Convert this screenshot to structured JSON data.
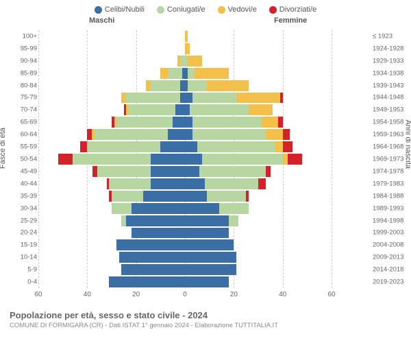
{
  "legend": [
    {
      "label": "Celibi/Nubili",
      "color": "#3b6ea5"
    },
    {
      "label": "Coniugati/e",
      "color": "#b7d6a2"
    },
    {
      "label": "Vedovi/e",
      "color": "#f3c04b"
    },
    {
      "label": "Divorziati/e",
      "color": "#d4222a"
    }
  ],
  "header_m": "Maschi",
  "header_f": "Femmine",
  "axis_left": "Fasce di età",
  "axis_right": "Anni di nascita",
  "title": "Popolazione per età, sesso e stato civile - 2024",
  "subtitle": "COMUNE DI FORMIGARA (CR) - Dati ISTAT 1° gennaio 2024 - Elaborazione TUTTITALIA.IT",
  "xmax": 60,
  "xticks": [
    60,
    40,
    20,
    0,
    20,
    40,
    60
  ],
  "colors": {
    "celibi": "#3b6ea5",
    "coniugati": "#b7d6a2",
    "vedovi": "#f3c04b",
    "divorziati": "#d4222a",
    "grid": "#cccccc",
    "center": "#bbbbbb",
    "bg": "#ffffff"
  },
  "rows": [
    {
      "age": "100+",
      "birth": "≤ 1923",
      "m": [
        0,
        0,
        0,
        0
      ],
      "f": [
        0,
        0,
        1,
        0
      ]
    },
    {
      "age": "95-99",
      "birth": "1924-1928",
      "m": [
        0,
        0,
        0,
        0
      ],
      "f": [
        0,
        0,
        2,
        0
      ]
    },
    {
      "age": "90-94",
      "birth": "1929-1933",
      "m": [
        0,
        2,
        1,
        0
      ],
      "f": [
        0,
        1,
        6,
        0
      ]
    },
    {
      "age": "85-89",
      "birth": "1934-1938",
      "m": [
        1,
        6,
        3,
        0
      ],
      "f": [
        1,
        3,
        14,
        0
      ]
    },
    {
      "age": "80-84",
      "birth": "1939-1943",
      "m": [
        2,
        12,
        2,
        0
      ],
      "f": [
        1,
        8,
        17,
        0
      ]
    },
    {
      "age": "75-79",
      "birth": "1944-1948",
      "m": [
        2,
        22,
        2,
        0
      ],
      "f": [
        3,
        18,
        18,
        1
      ]
    },
    {
      "age": "70-74",
      "birth": "1949-1953",
      "m": [
        4,
        19,
        1,
        1
      ],
      "f": [
        2,
        24,
        10,
        0
      ]
    },
    {
      "age": "65-69",
      "birth": "1954-1958",
      "m": [
        5,
        23,
        1,
        1
      ],
      "f": [
        3,
        28,
        7,
        2
      ]
    },
    {
      "age": "60-64",
      "birth": "1959-1963",
      "m": [
        7,
        30,
        1,
        2
      ],
      "f": [
        3,
        30,
        7,
        3
      ]
    },
    {
      "age": "55-59",
      "birth": "1964-1968",
      "m": [
        10,
        30,
        0,
        3
      ],
      "f": [
        5,
        32,
        3,
        4
      ]
    },
    {
      "age": "50-54",
      "birth": "1969-1973",
      "m": [
        14,
        32,
        0,
        6
      ],
      "f": [
        7,
        33,
        2,
        6
      ]
    },
    {
      "age": "45-49",
      "birth": "1974-1978",
      "m": [
        14,
        22,
        0,
        2
      ],
      "f": [
        6,
        27,
        0,
        2
      ]
    },
    {
      "age": "40-44",
      "birth": "1979-1983",
      "m": [
        14,
        17,
        0,
        1
      ],
      "f": [
        8,
        22,
        0,
        3
      ]
    },
    {
      "age": "35-39",
      "birth": "1984-1988",
      "m": [
        17,
        13,
        0,
        1
      ],
      "f": [
        9,
        16,
        0,
        1
      ]
    },
    {
      "age": "30-34",
      "birth": "1989-1993",
      "m": [
        22,
        8,
        0,
        0
      ],
      "f": [
        14,
        12,
        0,
        0
      ]
    },
    {
      "age": "25-29",
      "birth": "1994-1998",
      "m": [
        24,
        2,
        0,
        0
      ],
      "f": [
        18,
        4,
        0,
        0
      ]
    },
    {
      "age": "20-24",
      "birth": "1999-2003",
      "m": [
        22,
        0,
        0,
        0
      ],
      "f": [
        18,
        0,
        0,
        0
      ]
    },
    {
      "age": "15-19",
      "birth": "2004-2008",
      "m": [
        28,
        0,
        0,
        0
      ],
      "f": [
        20,
        0,
        0,
        0
      ]
    },
    {
      "age": "10-14",
      "birth": "2009-2013",
      "m": [
        27,
        0,
        0,
        0
      ],
      "f": [
        21,
        0,
        0,
        0
      ]
    },
    {
      "age": "5-9",
      "birth": "2014-2018",
      "m": [
        26,
        0,
        0,
        0
      ],
      "f": [
        21,
        0,
        0,
        0
      ]
    },
    {
      "age": "0-4",
      "birth": "2019-2023",
      "m": [
        31,
        0,
        0,
        0
      ],
      "f": [
        18,
        0,
        0,
        0
      ]
    }
  ]
}
